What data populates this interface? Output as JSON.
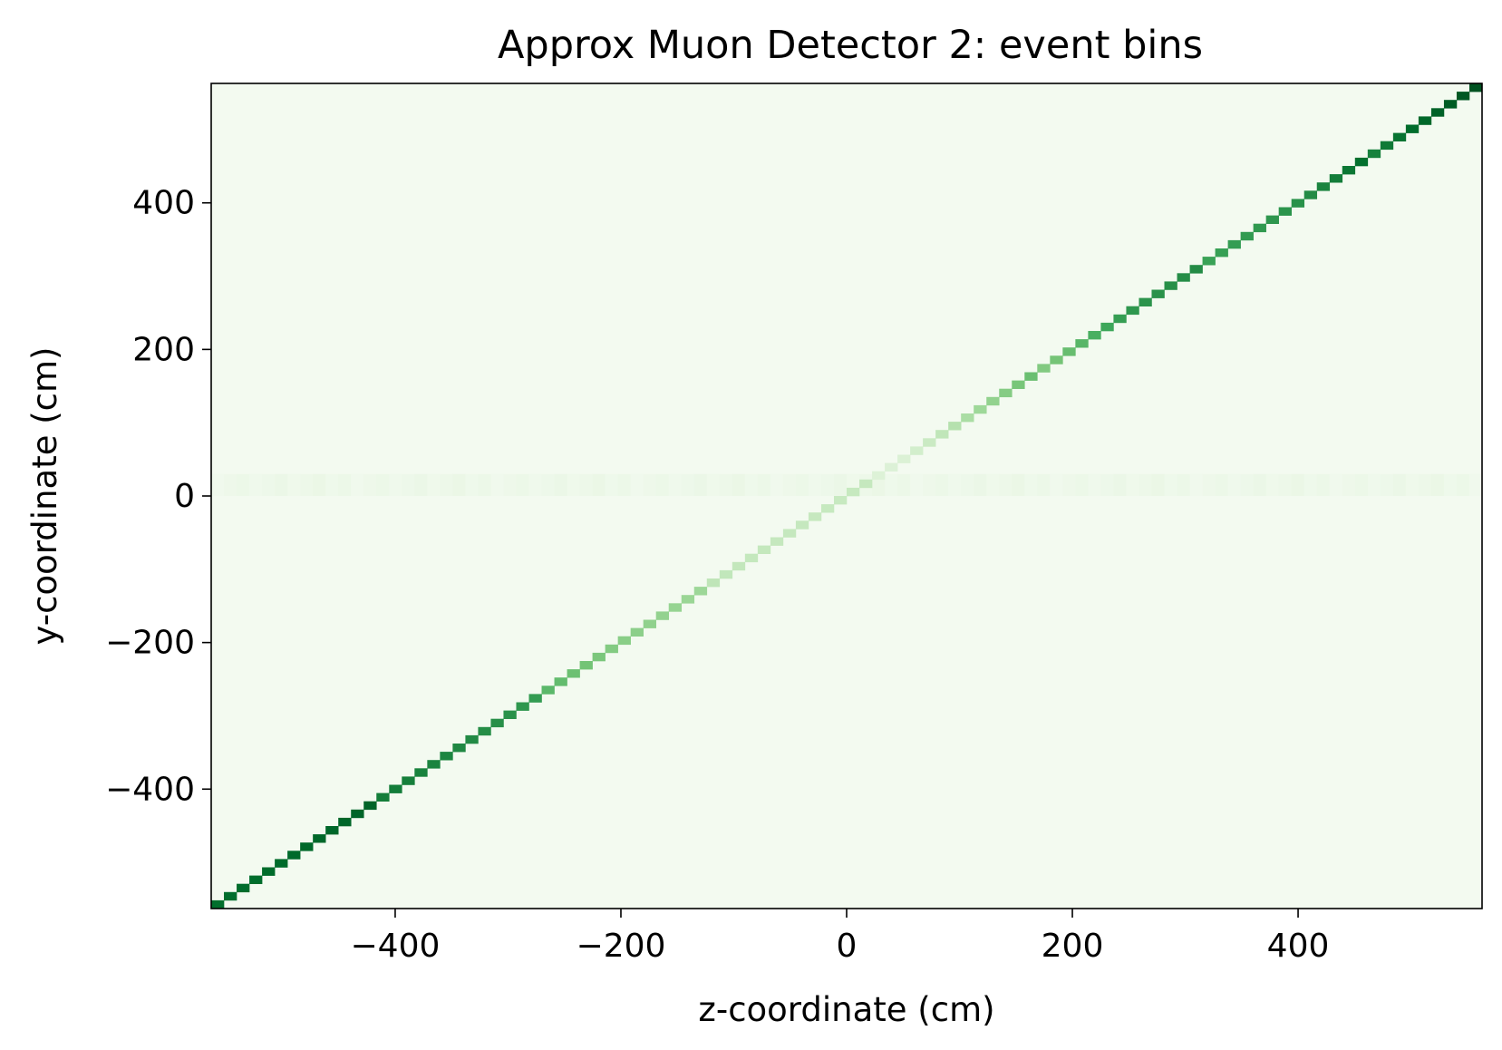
{
  "chart_data": {
    "type": "heatmap",
    "title": "Approx Muon Detector 2: event bins",
    "xlabel": "z-coordinate (cm)",
    "ylabel": "y-coordinate (cm)",
    "xlim": [
      -563,
      563
    ],
    "ylim": [
      -563,
      563
    ],
    "xticks": [
      -400,
      -200,
      0,
      200,
      400
    ],
    "yticks": [
      -400,
      -200,
      0,
      200,
      400
    ],
    "xtick_labels": [
      "−400",
      "−200",
      "0",
      "200",
      "400"
    ],
    "ytick_labels": [
      "−400",
      "−200",
      "0",
      "200",
      "400"
    ],
    "grid": false,
    "colormap": "Greens",
    "colors": {
      "background_bin": "#f3faf0",
      "faint_band": "#eaf6e6",
      "diagonal_low": "#c7e9c0",
      "diagonal_mid": "#74c476",
      "diagonal_high": "#238b45",
      "diagonal_max": "#00682a"
    },
    "bins": 100,
    "diagonal": {
      "relation": "y = z",
      "intensity_profile": [
        {
          "z": -563,
          "level": 0.92
        },
        {
          "z": -400,
          "level": 0.85
        },
        {
          "z": -300,
          "level": 0.7
        },
        {
          "z": -200,
          "level": 0.45
        },
        {
          "z": -100,
          "level": 0.3
        },
        {
          "z": 0,
          "level": 0.22
        },
        {
          "z": 50,
          "level": 0.2
        },
        {
          "z": 150,
          "level": 0.45
        },
        {
          "z": 250,
          "level": 0.7
        },
        {
          "z": 400,
          "level": 0.72
        },
        {
          "z": 500,
          "level": 0.9
        },
        {
          "z": 563,
          "level": 0.95
        }
      ]
    },
    "horizontal_band": {
      "y_range": [
        0,
        30
      ],
      "level": 0.05
    }
  }
}
